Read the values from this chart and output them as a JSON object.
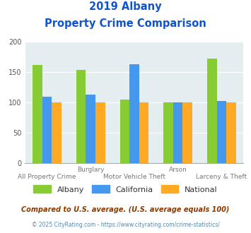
{
  "title_line1": "2019 Albany",
  "title_line2": "Property Crime Comparison",
  "x_top_labels": [
    "",
    "Burglary",
    "",
    "Arson",
    ""
  ],
  "x_bottom_labels": [
    "All Property Crime",
    "",
    "Motor Vehicle Theft",
    "",
    "Larceny & Theft"
  ],
  "albany": [
    162,
    154,
    105,
    100,
    172
  ],
  "california": [
    110,
    113,
    163,
    100,
    103
  ],
  "national": [
    100,
    100,
    100,
    100,
    100
  ],
  "color_albany": "#88cc33",
  "color_california": "#4499ee",
  "color_national": "#ffaa22",
  "color_title": "#1155cc",
  "color_bg": "#e4eef0",
  "ylim": [
    0,
    200
  ],
  "yticks": [
    0,
    50,
    100,
    150,
    200
  ],
  "legend_labels": [
    "Albany",
    "California",
    "National"
  ],
  "footnote1": "Compared to U.S. average. (U.S. average equals 100)",
  "footnote2": "© 2025 CityRating.com - https://www.cityrating.com/crime-statistics/"
}
